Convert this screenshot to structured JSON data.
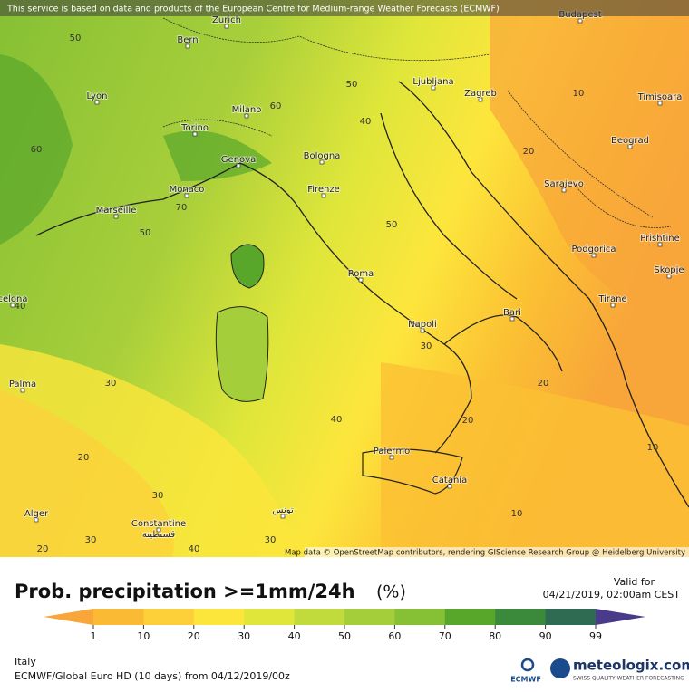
{
  "header": {
    "notice": "This service is based on data and products of the European Centre for Medium-range Weather Forecasts (ECMWF)"
  },
  "map": {
    "cities": [
      "Zurich",
      "Bern",
      "Budapest",
      "Lyon",
      "Milano",
      "Torino",
      "Ljubljana",
      "Zagreb",
      "Timisoara",
      "Genova",
      "Bologna",
      "Beograd",
      "Monaco",
      "Marseille",
      "Firenze",
      "Sarajevo",
      "Podgorica",
      "Prishtine",
      "Skopje",
      "Roma",
      "Tirane",
      "celona",
      "Napoli",
      "Bari",
      "Palma",
      "Palermo",
      "Catania",
      "Alger",
      "Constantine",
      "قسنطينة",
      "تونس"
    ],
    "contour_labels": [
      50,
      50,
      60,
      10,
      40,
      60,
      20,
      70,
      50,
      50,
      40,
      30,
      30,
      20,
      40,
      20,
      10,
      20,
      30,
      10,
      20,
      30,
      40,
      30
    ],
    "attribution": "Map data © OpenStreetMap contributors, rendering GIScience Research Group @ Heidelberg University"
  },
  "legend": {
    "title": "Prob. precipitation >=1mm/24h",
    "unit": "(%)",
    "valid_label": "Valid for",
    "valid_time": "04/21/2019, 02:00am CEST",
    "ticks": [
      1,
      10,
      20,
      30,
      40,
      50,
      60,
      70,
      80,
      90,
      99
    ],
    "colors": [
      "#f8a53a",
      "#fbba33",
      "#fdd03a",
      "#fde63c",
      "#e0e63a",
      "#c2db3c",
      "#a4ce3a",
      "#86c034",
      "#58a72b",
      "#3b8a3c",
      "#2f6a52",
      "#4a3a8c"
    ]
  },
  "footer": {
    "region": "Italy",
    "model": "ECMWF/Global Euro HD (10 days) from 04/12/2019/00z",
    "ecmwf_logo": "ECMWF",
    "brand": "meteologix.com",
    "brand_tagline": "SWISS QUALITY WEATHER FORECASTING"
  }
}
